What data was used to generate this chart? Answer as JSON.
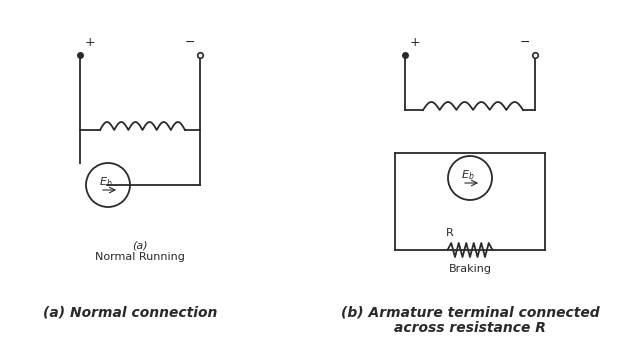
{
  "bg_color": "#ffffff",
  "line_color": "#2a2a2a",
  "caption_a": "(a) Normal connection",
  "caption_b": "(b) Armature terminal connected\nacross resistance R",
  "label_a": "(a)\nNormal Running",
  "label_b": "Braking",
  "n_loops": 6
}
